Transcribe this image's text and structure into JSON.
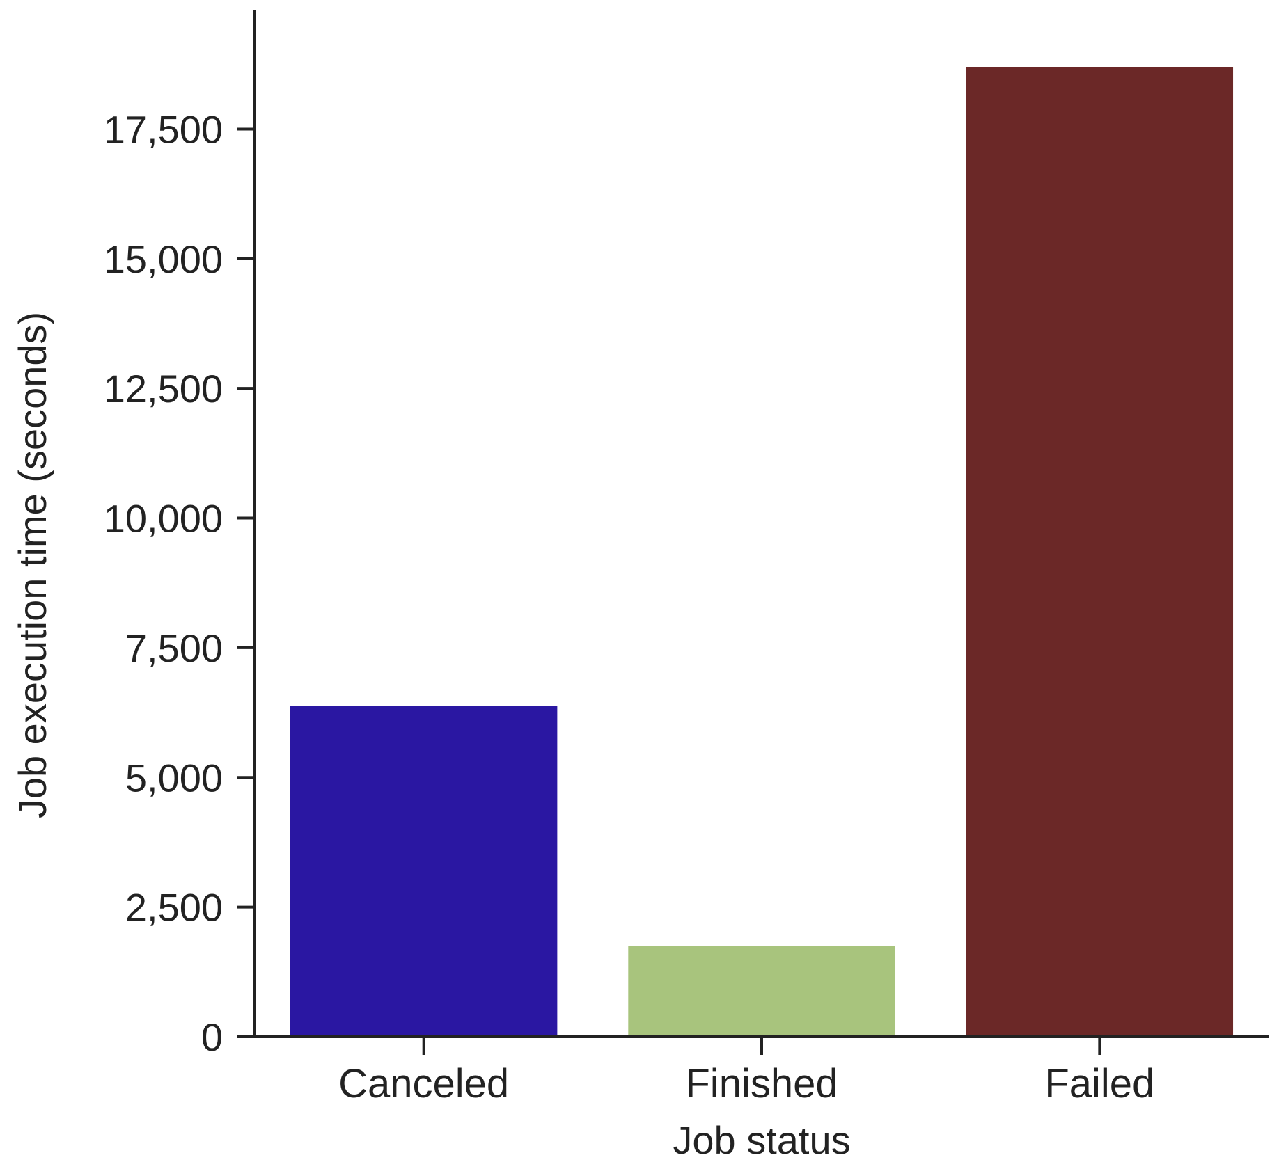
{
  "chart_data": {
    "type": "bar",
    "categories": [
      "Canceled",
      "Finished",
      "Failed"
    ],
    "values": [
      6380,
      1750,
      18700
    ],
    "colors": [
      "#2a17a2",
      "#a8c47d",
      "#6b2827"
    ],
    "xlabel": "Job status",
    "ylabel": "Job execution time (seconds)",
    "ylim": [
      0,
      19800
    ],
    "yticks": [
      0,
      2500,
      5000,
      7500,
      10000,
      12500,
      15000,
      17500
    ],
    "ytick_labels": [
      "0",
      "2,500",
      "5,000",
      "7,500",
      "10,000",
      "12,500",
      "15,000",
      "17,500"
    ],
    "grid": false,
    "axis_color": "#222222"
  }
}
